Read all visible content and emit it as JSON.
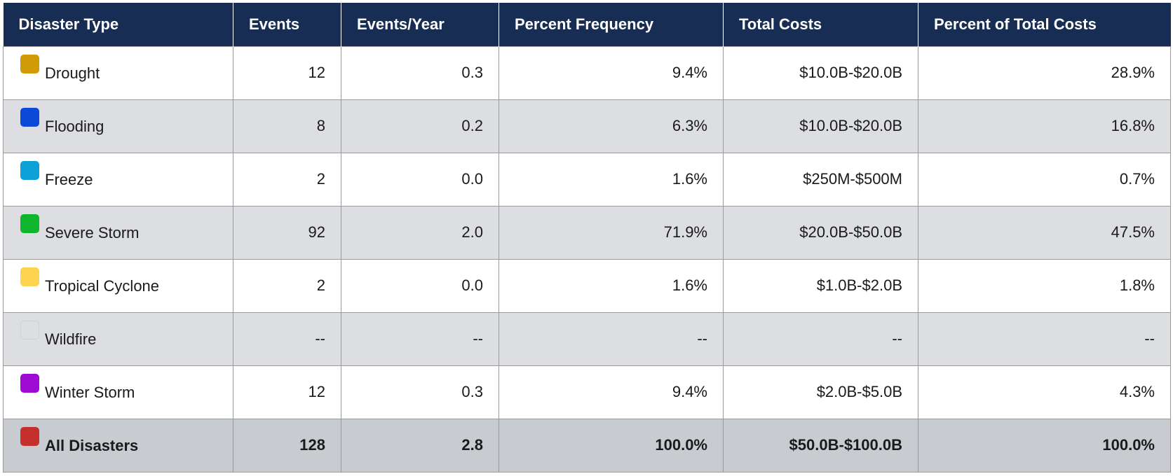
{
  "table": {
    "headers": [
      "Disaster Type",
      "Events",
      "Events/Year",
      "Percent Frequency",
      "Total Costs",
      "Percent of Total Costs"
    ],
    "rows": [
      {
        "type": "Drought",
        "swatch_color": "#d19a07",
        "events": "12",
        "events_per_year": "0.3",
        "percent_frequency": "9.4%",
        "total_costs": "$10.0B-$20.0B",
        "percent_total_costs": "28.9%"
      },
      {
        "type": "Flooding",
        "swatch_color": "#0c49d6",
        "events": "8",
        "events_per_year": "0.2",
        "percent_frequency": "6.3%",
        "total_costs": "$10.0B-$20.0B",
        "percent_total_costs": "16.8%"
      },
      {
        "type": "Freeze",
        "swatch_color": "#0ea1d8",
        "events": "2",
        "events_per_year": "0.0",
        "percent_frequency": "1.6%",
        "total_costs": "$250M-$500M",
        "percent_total_costs": "0.7%"
      },
      {
        "type": "Severe Storm",
        "swatch_color": "#0eb52d",
        "events": "92",
        "events_per_year": "2.0",
        "percent_frequency": "71.9%",
        "total_costs": "$20.0B-$50.0B",
        "percent_total_costs": "47.5%"
      },
      {
        "type": "Tropical Cyclone",
        "swatch_color": "#fdd350",
        "events": "2",
        "events_per_year": "0.0",
        "percent_frequency": "1.6%",
        "total_costs": "$1.0B-$2.0B",
        "percent_total_costs": "1.8%"
      },
      {
        "type": "Wildfire",
        "swatch_color": "#dcdee1",
        "events": "--",
        "events_per_year": "--",
        "percent_frequency": "--",
        "total_costs": "--",
        "percent_total_costs": "--"
      },
      {
        "type": "Winter Storm",
        "swatch_color": "#9d0ad3",
        "events": "12",
        "events_per_year": "0.3",
        "percent_frequency": "9.4%",
        "total_costs": "$2.0B-$5.0B",
        "percent_total_costs": "4.3%"
      }
    ],
    "total": {
      "type": "All Disasters",
      "swatch_color": "#c5302d",
      "events": "128",
      "events_per_year": "2.8",
      "percent_frequency": "100.0%",
      "total_costs": "$50.0B-$100.0B",
      "percent_total_costs": "100.0%"
    }
  }
}
